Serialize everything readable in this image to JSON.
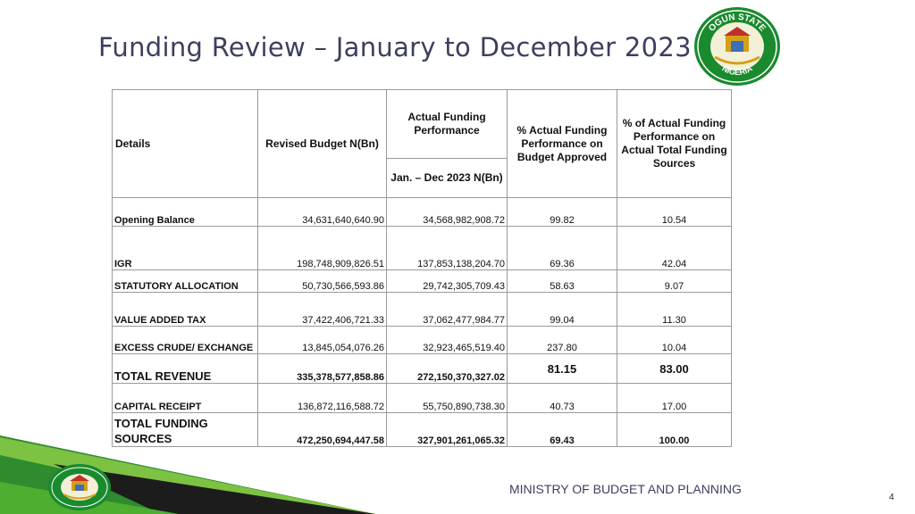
{
  "slide": {
    "title": "Funding Review – January to December 2023",
    "ministry": "MINISTRY OF BUDGET AND PLANNING",
    "page_number": "4"
  },
  "logo": {
    "top_text": "OGUN STATE",
    "bottom_text": "NIGERIA",
    "colors": {
      "green": "#1a8a2e",
      "gold": "#d4a017",
      "red": "#c0302a"
    }
  },
  "table": {
    "headers": {
      "details": "Details",
      "revised_budget": "Revised Budget N(Bn)",
      "actual_funding": "Actual Funding Performance",
      "period": "Jan. – Dec 2023 N(Bn)",
      "pct_budget": "% Actual Funding Performance on Budget Approved",
      "pct_total": "% of  Actual Funding Performance on Actual Total Funding Sources"
    },
    "rows": [
      {
        "label": "Opening Balance",
        "budget": "34,631,640,640.90",
        "actual": "34,568,982,908.72",
        "pct_budget": "99.82",
        "pct_total": "10.54"
      },
      {
        "label": "IGR",
        "budget": "198,748,909,826.51",
        "actual": "137,853,138,204.70",
        "pct_budget": "69.36",
        "pct_total": "42.04"
      },
      {
        "label": "STATUTORY ALLOCATION",
        "budget": "50,730,566,593.86",
        "actual": "29,742,305,709.43",
        "pct_budget": "58.63",
        "pct_total": "9.07"
      },
      {
        "label": "VALUE ADDED TAX",
        "budget": "37,422,406,721.33",
        "actual": "37,062,477,984.77",
        "pct_budget": "99.04",
        "pct_total": "11.30"
      },
      {
        "label": "EXCESS CRUDE/ EXCHANGE",
        "budget": "13,845,054,076.26",
        "actual": "32,923,465,519.40",
        "pct_budget": "237.80",
        "pct_total": "10.04"
      },
      {
        "label": "TOTAL REVENUE",
        "budget": "335,378,577,858.86",
        "actual": "272,150,370,327.02",
        "pct_budget": "81.15",
        "pct_total": "83.00"
      },
      {
        "label": "CAPITAL RECEIPT",
        "budget": "136,872,116,588.72",
        "actual": "55,750,890,738.30",
        "pct_budget": "40.73",
        "pct_total": "17.00"
      },
      {
        "label": "TOTAL FUNDING SOURCES",
        "budget": "472,250,694,447.58",
        "actual": "327,901,261,065.32",
        "pct_budget": "69.43",
        "pct_total": "100.00"
      }
    ]
  }
}
